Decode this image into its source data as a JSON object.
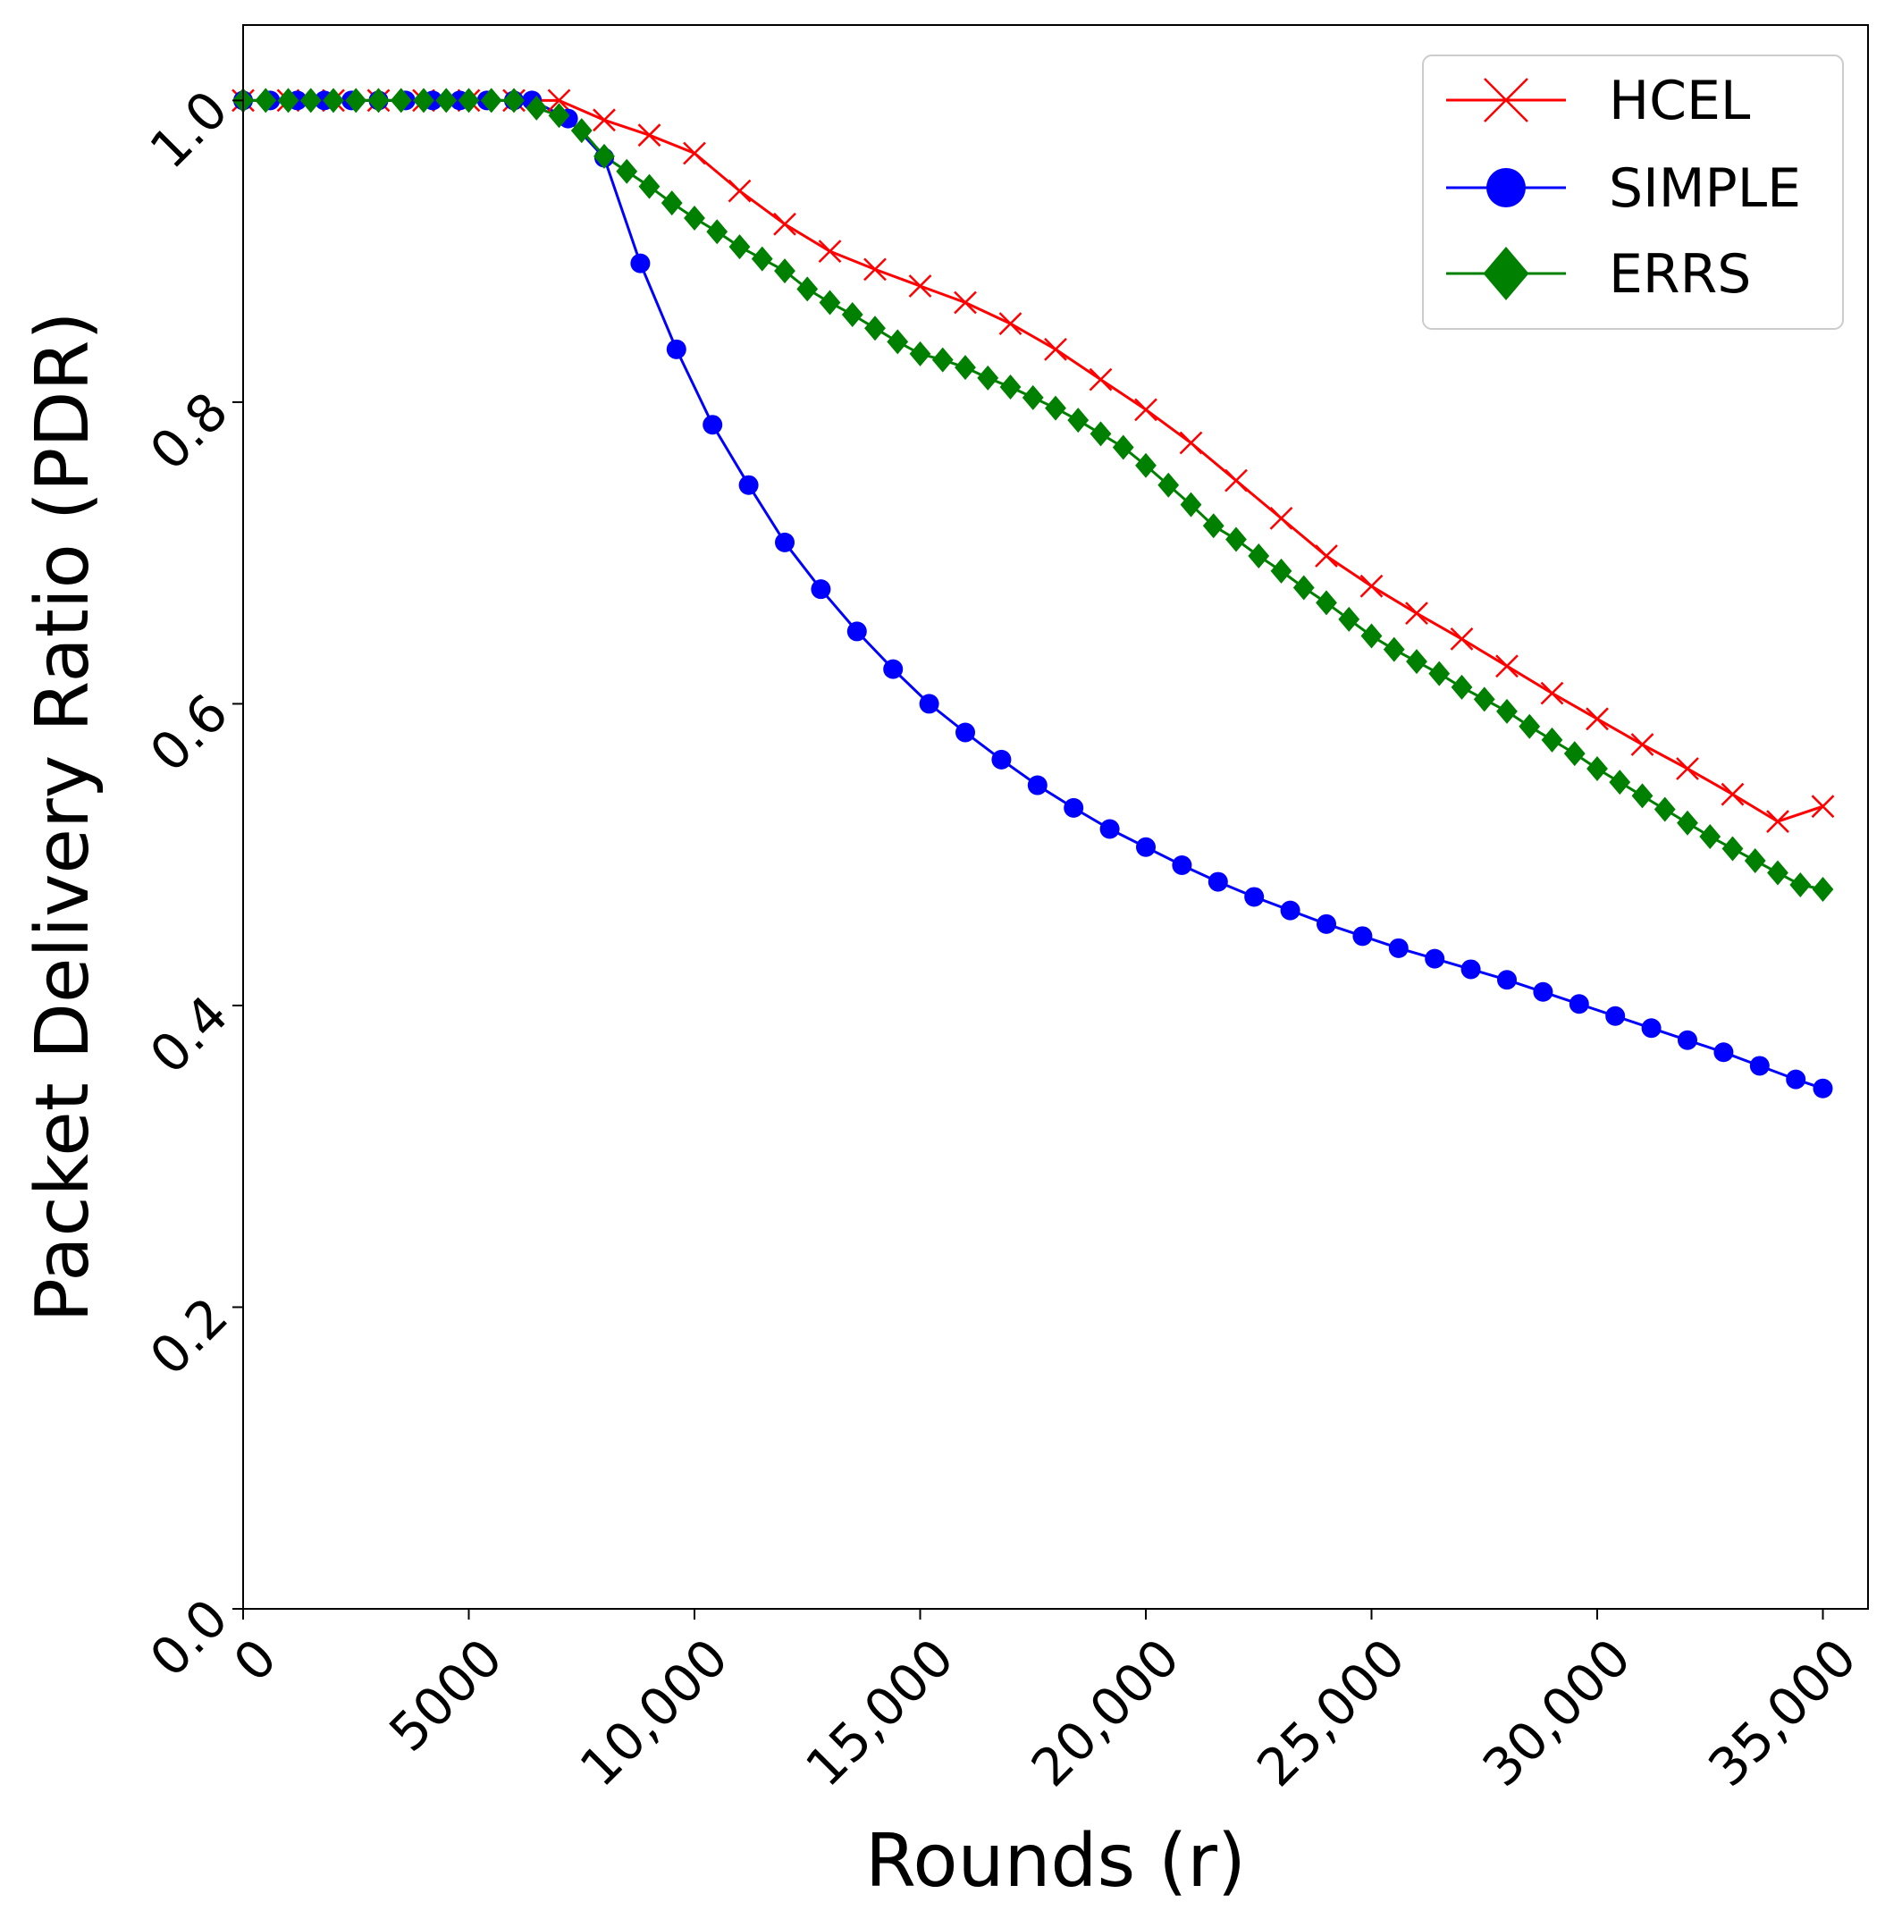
{
  "chart_data": {
    "type": "line",
    "title": "",
    "xlabel": "Rounds (r)",
    "ylabel": "Packet Delivery Ratio (PDR)",
    "xlim": [
      0,
      36000
    ],
    "ylim": [
      0,
      1.05
    ],
    "xticks": [
      0,
      5000,
      10000,
      15000,
      20000,
      25000,
      30000,
      35000
    ],
    "xtick_labels": [
      "0",
      "5000",
      "10,000",
      "15,000",
      "20,000",
      "25,000",
      "30,000",
      "35,000"
    ],
    "yticks": [
      0,
      0.2,
      0.4,
      0.6,
      0.8,
      1.0
    ],
    "ytick_labels": [
      "0.0",
      "0.2",
      "0.4",
      "0.6",
      "0.8",
      "1.0"
    ],
    "grid": false,
    "legend_position": "top-right",
    "series": [
      {
        "name": "HCEL",
        "color": "#ff0000",
        "marker": "x",
        "x": [
          0,
          1000,
          2000,
          3000,
          4000,
          5000,
          6000,
          7000,
          8000,
          9000,
          10000,
          11000,
          12000,
          13000,
          14000,
          15000,
          16000,
          17000,
          18000,
          19000,
          20000,
          21000,
          22000,
          23000,
          24000,
          25000,
          26000,
          27000,
          28000,
          29000,
          30000,
          31000,
          32000,
          33000,
          34000,
          35000
        ],
        "y": [
          1.0,
          1.0,
          1.0,
          1.0,
          1.0,
          1.0,
          1.0,
          1.0,
          0.987,
          0.977,
          0.965,
          0.94,
          0.918,
          0.9,
          0.888,
          0.877,
          0.866,
          0.852,
          0.835,
          0.815,
          0.795,
          0.773,
          0.748,
          0.723,
          0.698,
          0.678,
          0.66,
          0.643,
          0.625,
          0.607,
          0.59,
          0.573,
          0.557,
          0.54,
          0.522,
          0.532
        ]
      },
      {
        "name": "SIMPLE",
        "color": "#0000ff",
        "marker": "o",
        "x": [
          0,
          600,
          1200,
          1800,
          2400,
          3000,
          3600,
          4200,
          4800,
          5400,
          6000,
          6400,
          7200,
          8000,
          8800,
          9600,
          10400,
          11200,
          12000,
          12800,
          13600,
          14400,
          15200,
          16000,
          16800,
          17600,
          18400,
          19200,
          20000,
          20800,
          21600,
          22400,
          23200,
          24000,
          24800,
          25600,
          26400,
          27200,
          28000,
          28800,
          29600,
          30400,
          31200,
          32000,
          32800,
          33600,
          34400,
          35000
        ],
        "y": [
          1.0,
          1.0,
          1.0,
          1.0,
          1.0,
          1.0,
          1.0,
          1.0,
          1.0,
          1.0,
          1.0,
          1.0,
          0.988,
          0.962,
          0.892,
          0.835,
          0.785,
          0.745,
          0.707,
          0.676,
          0.648,
          0.623,
          0.6,
          0.581,
          0.563,
          0.546,
          0.531,
          0.517,
          0.505,
          0.493,
          0.482,
          0.472,
          0.463,
          0.454,
          0.446,
          0.438,
          0.431,
          0.424,
          0.417,
          0.409,
          0.401,
          0.393,
          0.385,
          0.377,
          0.369,
          0.36,
          0.351,
          0.345
        ]
      },
      {
        "name": "ERRS",
        "color": "#008000",
        "marker": "D",
        "x": [
          0,
          500,
          1000,
          1500,
          2000,
          2500,
          3000,
          3500,
          4000,
          4500,
          5000,
          5500,
          6000,
          6500,
          7000,
          7500,
          8000,
          8500,
          9000,
          9500,
          10000,
          10500,
          11000,
          11500,
          12000,
          12500,
          13000,
          13500,
          14000,
          14500,
          15000,
          15500,
          16000,
          16500,
          17000,
          17500,
          18000,
          18500,
          19000,
          19500,
          20000,
          20500,
          21000,
          21500,
          22000,
          22500,
          23000,
          23500,
          24000,
          24500,
          25000,
          25500,
          26000,
          26500,
          27000,
          27500,
          28000,
          28500,
          29000,
          29500,
          30000,
          30500,
          31000,
          31500,
          32000,
          32500,
          33000,
          33500,
          34000,
          34500,
          35000
        ],
        "y": [
          1.0,
          1.0,
          1.0,
          1.0,
          1.0,
          1.0,
          1.0,
          1.0,
          1.0,
          1.0,
          1.0,
          1.0,
          1.0,
          0.995,
          0.99,
          0.98,
          0.963,
          0.953,
          0.943,
          0.932,
          0.922,
          0.913,
          0.903,
          0.895,
          0.887,
          0.875,
          0.866,
          0.858,
          0.849,
          0.84,
          0.832,
          0.828,
          0.823,
          0.816,
          0.81,
          0.803,
          0.796,
          0.788,
          0.779,
          0.77,
          0.758,
          0.745,
          0.732,
          0.718,
          0.709,
          0.698,
          0.688,
          0.677,
          0.667,
          0.656,
          0.645,
          0.636,
          0.628,
          0.62,
          0.611,
          0.603,
          0.595,
          0.585,
          0.576,
          0.567,
          0.557,
          0.548,
          0.539,
          0.53,
          0.521,
          0.512,
          0.504,
          0.496,
          0.488,
          0.48,
          0.477
        ]
      }
    ]
  }
}
